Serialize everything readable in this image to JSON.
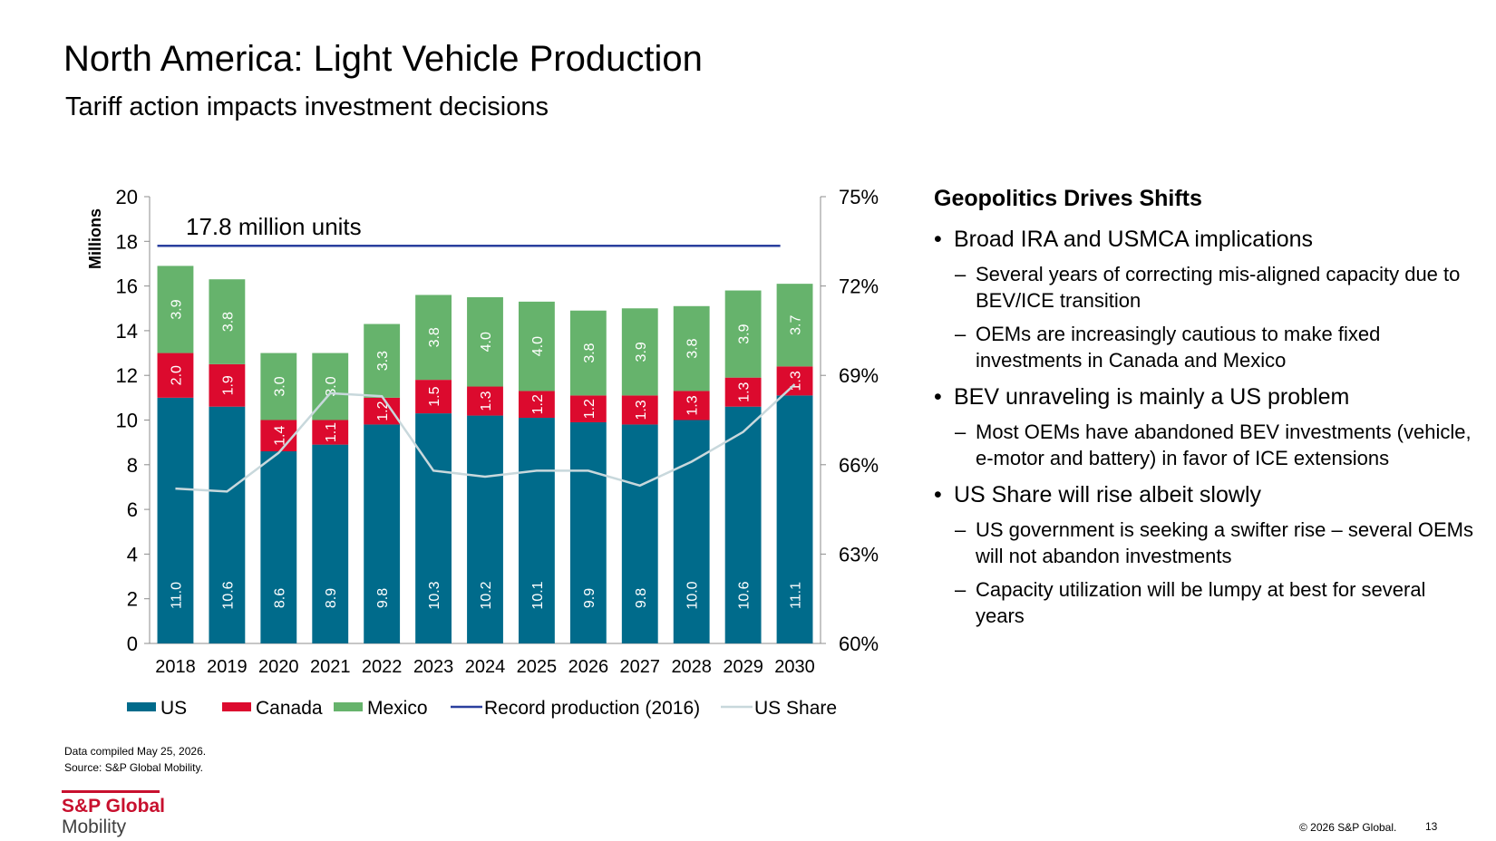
{
  "header": {
    "title": "North America: Light Vehicle Production",
    "subtitle": "Tariff action impacts investment decisions"
  },
  "chart_data": {
    "type": "bar",
    "stacked": true,
    "categories": [
      "2018",
      "2019",
      "2020",
      "2021",
      "2022",
      "2023",
      "2024",
      "2025",
      "2026",
      "2027",
      "2028",
      "2029",
      "2030"
    ],
    "series": [
      {
        "name": "US",
        "values": [
          11.0,
          10.6,
          8.6,
          8.9,
          9.8,
          10.3,
          10.2,
          10.1,
          9.9,
          9.8,
          10.0,
          10.6,
          11.1
        ],
        "labels": [
          "11.0",
          "10.6",
          "8.6",
          "8.9",
          "9.8",
          "10.3",
          "10.2",
          "10.1",
          "9.9",
          "9.8",
          "10.0",
          "10.6",
          "11.1"
        ],
        "color": "#006b8b"
      },
      {
        "name": "Canada",
        "values": [
          2.0,
          1.9,
          1.4,
          1.1,
          1.2,
          1.5,
          1.3,
          1.2,
          1.2,
          1.3,
          1.3,
          1.3,
          1.3
        ],
        "labels": [
          "2.0",
          "1.9",
          "1.4",
          "1.1",
          "1.2",
          "1.5",
          "1.3",
          "1.2",
          "1.2",
          "1.3",
          "1.3",
          "1.3",
          "1.3"
        ],
        "color": "#dc0a2e"
      },
      {
        "name": "Mexico",
        "values": [
          3.9,
          3.8,
          3.0,
          3.0,
          3.3,
          3.8,
          4.0,
          4.0,
          3.8,
          3.9,
          3.8,
          3.9,
          3.7
        ],
        "labels": [
          "3.9",
          "3.8",
          "3.0",
          "3.0",
          "3.3",
          "3.8",
          "4.0",
          "4.0",
          "3.8",
          "3.9",
          "3.8",
          "3.9",
          "3.7"
        ],
        "color": "#66b36c"
      }
    ],
    "record_line": {
      "name": "Record production (2016)",
      "value": 17.8,
      "label": "17.8 million units",
      "color": "#2a3f9e"
    },
    "share_line": {
      "name": "US Share",
      "values": [
        65.2,
        65.1,
        66.4,
        68.4,
        68.3,
        65.8,
        65.6,
        65.8,
        65.8,
        65.3,
        66.1,
        67.1,
        68.7
      ],
      "color": "#c8d8dc"
    },
    "ylabel": "Millions",
    "ylim": [
      0,
      20
    ],
    "y_ticks": [
      "0",
      "2",
      "4",
      "6",
      "8",
      "10",
      "12",
      "14",
      "16",
      "18",
      "20"
    ],
    "y2lim": [
      60,
      75
    ],
    "y2_ticks": [
      "60%",
      "63%",
      "66%",
      "69%",
      "72%",
      "75%"
    ],
    "legend": [
      "US",
      "Canada",
      "Mexico",
      "Record production (2016)",
      "US Share"
    ],
    "legend_position": "bottom",
    "grid": false
  },
  "panel": {
    "heading": "Geopolitics Drives Shifts",
    "bullets": [
      {
        "text": "Broad IRA and USMCA implications",
        "subs": [
          "Several years of correcting mis-aligned capacity due to BEV/ICE transition",
          "OEMs are increasingly cautious to make fixed investments in Canada and Mexico"
        ]
      },
      {
        "text": "BEV unraveling is mainly a US problem",
        "subs": [
          "Most OEMs have abandoned BEV investments (vehicle, e-motor and battery) in favor of ICE extensions"
        ]
      },
      {
        "text": "US Share will rise albeit slowly",
        "subs": [
          "US government is seeking a swifter rise – several OEMs will not abandon investments",
          "Capacity utilization will be lumpy at best for several years"
        ]
      }
    ]
  },
  "footer": {
    "compiled": "Data compiled May 25, 2026.",
    "source": "Source: S&P Global Mobility.",
    "logo_top": "S&P Global",
    "logo_bottom": "Mobility",
    "copyright": "© 2026 S&P Global.",
    "page_number": "13"
  }
}
